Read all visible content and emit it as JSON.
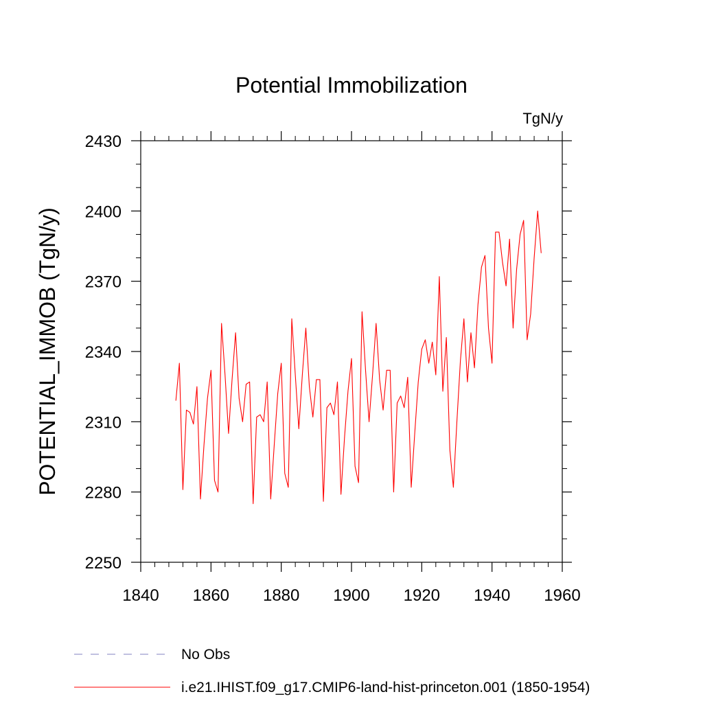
{
  "chart_data": {
    "type": "line",
    "title": "Potential Immobilization",
    "units": "TgN/y",
    "ylabel": "POTENTIAL_IMMOB  (TgN/y)",
    "xlabel": "",
    "xlim": [
      1840,
      1960
    ],
    "ylim": [
      2250,
      2430
    ],
    "xticks": [
      1840,
      1860,
      1880,
      1900,
      1920,
      1940,
      1960
    ],
    "yticks": [
      2250,
      2280,
      2310,
      2340,
      2370,
      2400,
      2430
    ],
    "grid": false,
    "legend": [
      {
        "label": "No Obs",
        "color": "#8080c0",
        "style": "dashed"
      },
      {
        "label": "i.e21.IHIST.f09_g17.CMIP6-land-hist-princeton.001 (1850-1954)",
        "color": "#ff0000",
        "style": "solid"
      }
    ],
    "series": [
      {
        "name": "i.e21.IHIST.f09_g17.CMIP6-land-hist-princeton.001 (1850-1954)",
        "color": "#ff0000",
        "x_start": 1850,
        "x_step": 1,
        "values": [
          2319,
          2335,
          2281,
          2315,
          2314,
          2309,
          2325,
          2277,
          2300,
          2320,
          2332,
          2285,
          2280,
          2352,
          2330,
          2305,
          2328,
          2348,
          2320,
          2310,
          2326,
          2327,
          2275,
          2312,
          2313,
          2310,
          2327,
          2277,
          2300,
          2322,
          2335,
          2288,
          2282,
          2354,
          2330,
          2307,
          2330,
          2350,
          2325,
          2312,
          2328,
          2328,
          2276,
          2316,
          2318,
          2313,
          2327,
          2279,
          2303,
          2323,
          2337,
          2291,
          2284,
          2357,
          2332,
          2310,
          2330,
          2352,
          2328,
          2315,
          2332,
          2332,
          2280,
          2318,
          2321,
          2316,
          2329,
          2282,
          2305,
          2327,
          2341,
          2345,
          2335,
          2344,
          2330,
          2372,
          2323,
          2346,
          2298,
          2282,
          2310,
          2336,
          2354,
          2327,
          2348,
          2333,
          2360,
          2376,
          2381,
          2350,
          2335,
          2391,
          2391,
          2378,
          2368,
          2388,
          2350,
          2375,
          2390,
          2396,
          2345,
          2356,
          2380,
          2400,
          2382
        ]
      }
    ]
  }
}
